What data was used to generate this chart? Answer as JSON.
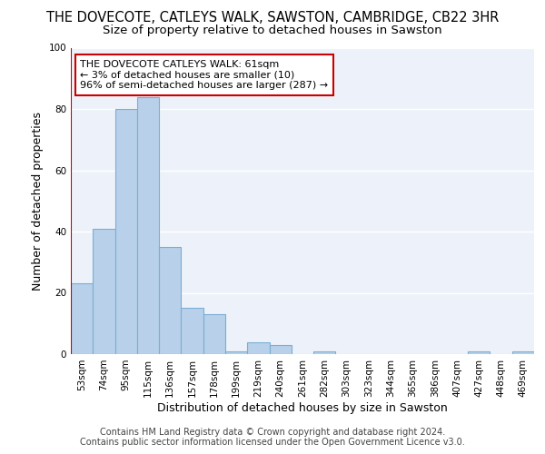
{
  "title": "THE DOVECOTE, CATLEYS WALK, SAWSTON, CAMBRIDGE, CB22 3HR",
  "subtitle": "Size of property relative to detached houses in Sawston",
  "xlabel": "Distribution of detached houses by size in Sawston",
  "ylabel": "Number of detached properties",
  "footer_line1": "Contains HM Land Registry data © Crown copyright and database right 2024.",
  "footer_line2": "Contains public sector information licensed under the Open Government Licence v3.0.",
  "categories": [
    "53sqm",
    "74sqm",
    "95sqm",
    "115sqm",
    "136sqm",
    "157sqm",
    "178sqm",
    "199sqm",
    "219sqm",
    "240sqm",
    "261sqm",
    "282sqm",
    "303sqm",
    "323sqm",
    "344sqm",
    "365sqm",
    "386sqm",
    "407sqm",
    "427sqm",
    "448sqm",
    "469sqm"
  ],
  "values": [
    23,
    41,
    80,
    84,
    35,
    15,
    13,
    1,
    4,
    3,
    0,
    1,
    0,
    0,
    0,
    0,
    0,
    0,
    1,
    0,
    1
  ],
  "bar_color": "#b8d0ea",
  "bar_edge_color": "#7aaed4",
  "annotation_box_text": "THE DOVECOTE CATLEYS WALK: 61sqm\n← 3% of detached houses are smaller (10)\n96% of semi-detached houses are larger (287) →",
  "annotation_box_color": "#cc0000",
  "vline_x": -0.5,
  "ylim": [
    0,
    100
  ],
  "yticks": [
    0,
    20,
    40,
    60,
    80,
    100
  ],
  "bg_color": "#edf2fa",
  "grid_color": "#ffffff",
  "title_fontsize": 10.5,
  "subtitle_fontsize": 9.5,
  "axis_label_fontsize": 9,
  "tick_fontsize": 7.5,
  "annotation_fontsize": 8,
  "footer_fontsize": 7
}
